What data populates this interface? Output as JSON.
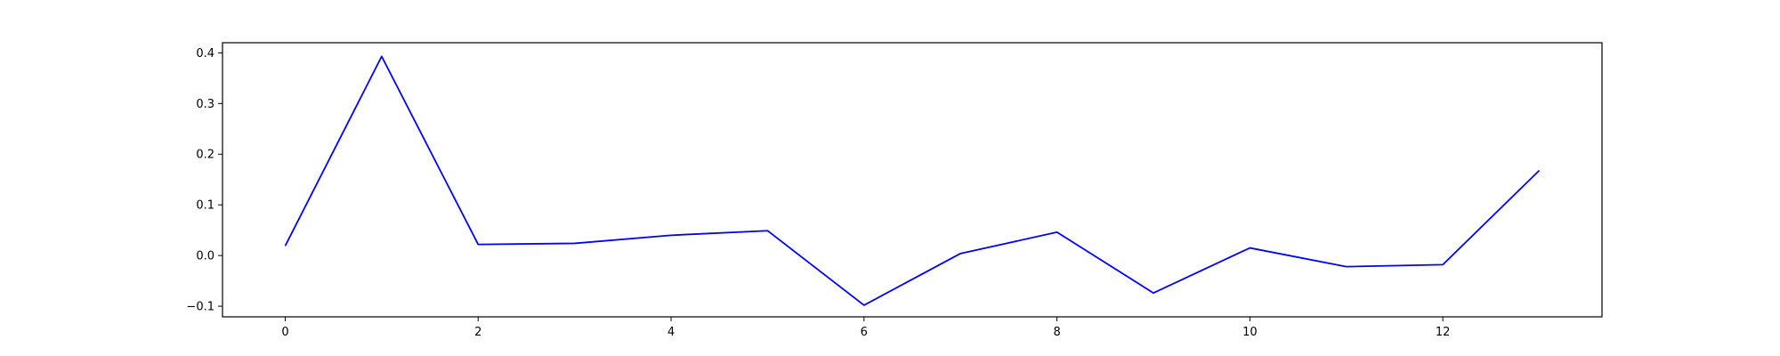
{
  "chart_data": {
    "type": "line",
    "title": "",
    "xlabel": "",
    "ylabel": "",
    "xlim": [
      -0.65,
      13.65
    ],
    "ylim": [
      -0.121,
      0.42
    ],
    "x_ticks": [
      0,
      2,
      4,
      6,
      8,
      10,
      12
    ],
    "x_tick_labels": [
      "0",
      "2",
      "4",
      "6",
      "8",
      "10",
      "12"
    ],
    "y_ticks": [
      -0.1,
      0.0,
      0.1,
      0.2,
      0.3,
      0.4
    ],
    "y_tick_labels": [
      "−0.1",
      "0.0",
      "0.1",
      "0.2",
      "0.3",
      "0.4"
    ],
    "grid": false,
    "legend": "none",
    "series": [
      {
        "color": "#0000ff",
        "x": [
          0,
          1,
          2,
          3,
          4,
          5,
          6,
          7,
          8,
          9,
          10,
          11,
          12,
          13
        ],
        "values": [
          0.019,
          0.393,
          0.022,
          0.024,
          0.04,
          0.049,
          -0.098,
          0.004,
          0.046,
          -0.074,
          0.015,
          -0.022,
          -0.018,
          0.168
        ]
      }
    ]
  }
}
